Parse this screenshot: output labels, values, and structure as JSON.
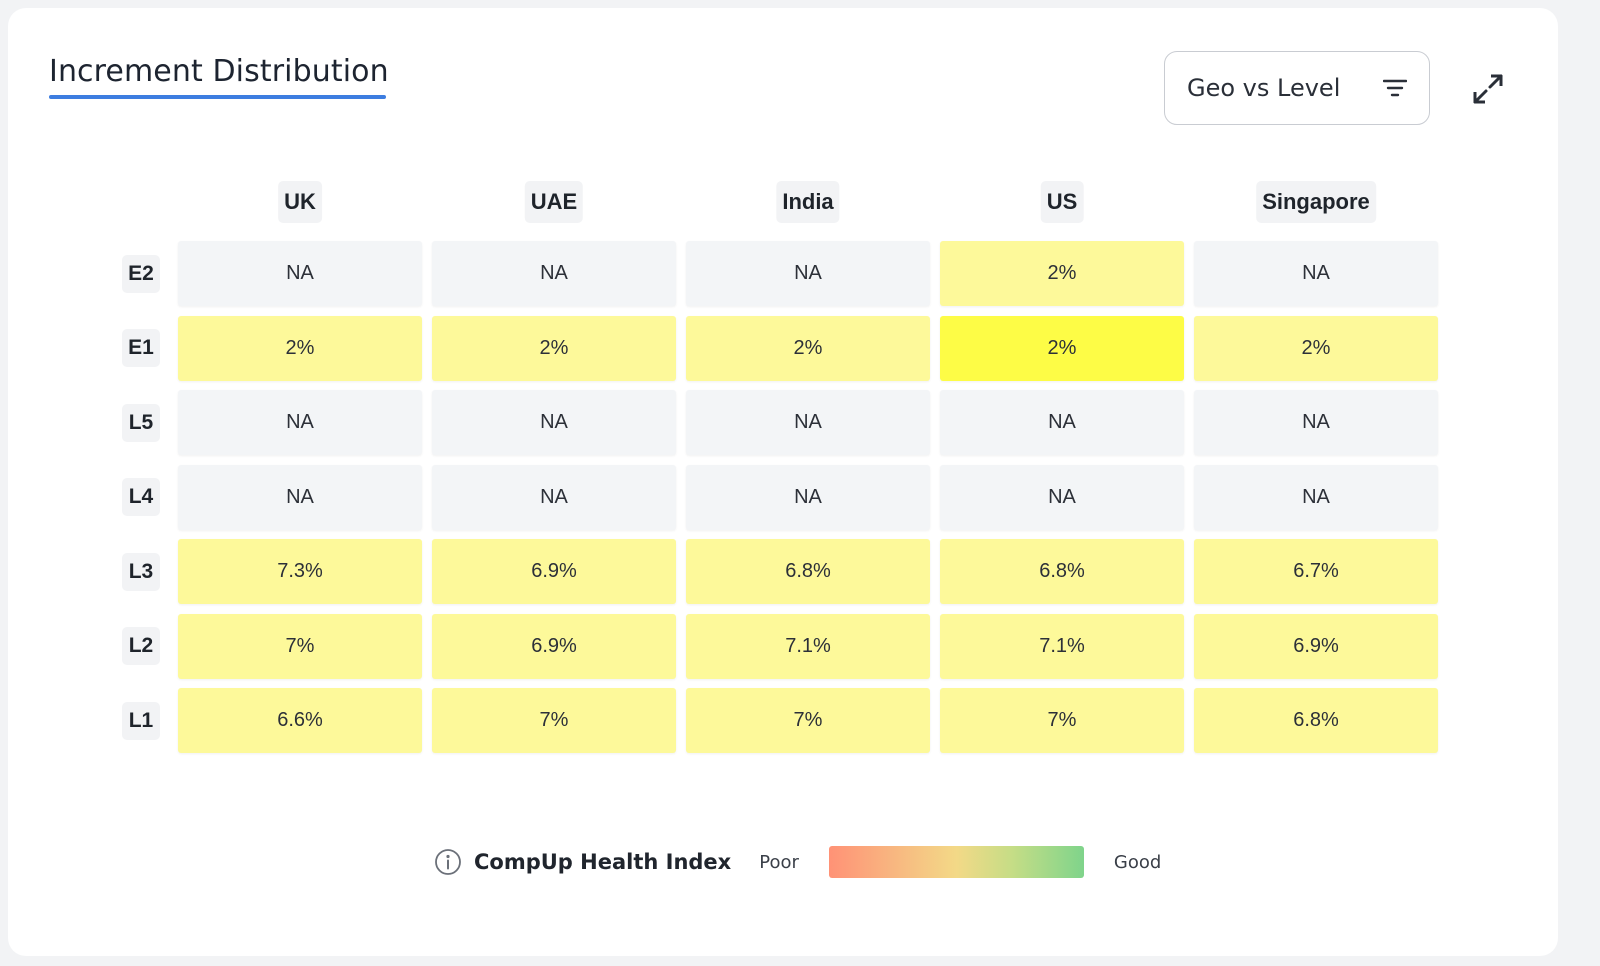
{
  "header": {
    "title": "Increment Distribution",
    "view_selector": "Geo vs Level",
    "filter_icon": "filter-lines-icon",
    "expand_icon": "expand-arrows-icon"
  },
  "chart_data": {
    "type": "heatmap",
    "columns": [
      "UK",
      "UAE",
      "India",
      "US",
      "Singapore"
    ],
    "rows": [
      "E2",
      "E1",
      "L5",
      "L4",
      "L3",
      "L2",
      "L1"
    ],
    "values": [
      [
        "NA",
        "NA",
        "NA",
        "2%",
        "NA"
      ],
      [
        "2%",
        "2%",
        "2%",
        "2%",
        "2%"
      ],
      [
        "NA",
        "NA",
        "NA",
        "NA",
        "NA"
      ],
      [
        "NA",
        "NA",
        "NA",
        "NA",
        "NA"
      ],
      [
        "7.3%",
        "6.9%",
        "6.8%",
        "6.8%",
        "6.7%"
      ],
      [
        "7%",
        "6.9%",
        "7.1%",
        "7.1%",
        "6.9%"
      ],
      [
        "6.6%",
        "7%",
        "7%",
        "7%",
        "6.8%"
      ]
    ],
    "cell_colors": [
      [
        "#f3f5f7",
        "#f3f5f7",
        "#f3f5f7",
        "#fdf99a",
        "#f3f5f7"
      ],
      [
        "#fdf99a",
        "#fdf99a",
        "#fdf99a",
        "#fdfc46",
        "#fdf99a"
      ],
      [
        "#f3f5f7",
        "#f3f5f7",
        "#f3f5f7",
        "#f3f5f7",
        "#f3f5f7"
      ],
      [
        "#f3f5f7",
        "#f3f5f7",
        "#f3f5f7",
        "#f3f5f7",
        "#f3f5f7"
      ],
      [
        "#fdf99a",
        "#fdf99a",
        "#fdf99a",
        "#fdf99a",
        "#fdf99a"
      ],
      [
        "#fdf99a",
        "#fdf99a",
        "#fdf99a",
        "#fdf99a",
        "#fdf99a"
      ],
      [
        "#fdf99a",
        "#fdf99a",
        "#fdf99a",
        "#fdf99a",
        "#fdf99a"
      ]
    ]
  },
  "legend": {
    "title": "CompUp Health Index",
    "info_icon": "info-circle-icon",
    "low_label": "Poor",
    "high_label": "Good",
    "gradient_colors": [
      "#ff9276",
      "#f8b680",
      "#f3d987",
      "#c5dd86",
      "#7fd48b"
    ]
  },
  "colors": {
    "accent": "#3d7de0",
    "na_cell": "#f3f5f7",
    "mid_cell": "#fdf99a",
    "highlight_cell": "#fdfc46"
  }
}
